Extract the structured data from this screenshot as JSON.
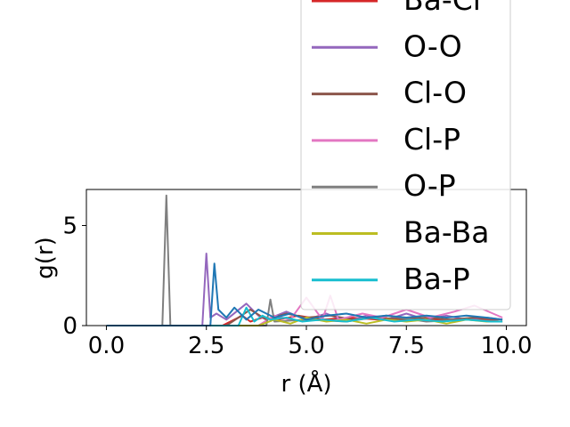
{
  "chart_data": {
    "type": "line",
    "title": "",
    "xlabel": "r (Å)",
    "ylabel": "g(r)",
    "xlim": [
      -0.5,
      10.5
    ],
    "ylim": [
      0,
      6.8
    ],
    "xticks": [
      0.0,
      2.5,
      5.0,
      7.5,
      10.0
    ],
    "xtick_labels": [
      "0.0",
      "2.5",
      "5.0",
      "7.5",
      "10.0"
    ],
    "yticks": [
      0,
      5
    ],
    "ytick_labels": [
      "0",
      "5"
    ],
    "grid": false,
    "legend_position": "top-right",
    "series": [
      {
        "name": "Ba-Cl",
        "color": "#d62728",
        "x": [
          0,
          2.9,
          3.1,
          3.4,
          3.6,
          3.9,
          4.3,
          4.8,
          5.4,
          6.1,
          6.8,
          7.6,
          8.3,
          9.0,
          9.8
        ],
        "y": [
          0,
          0,
          0.2,
          0.5,
          0.2,
          0.4,
          0.3,
          0.5,
          0.3,
          0.4,
          0.3,
          0.4,
          0.3,
          0.3,
          0.3
        ]
      },
      {
        "name": "O-O",
        "color": "#9467bd",
        "x": [
          0,
          2.4,
          2.5,
          2.6,
          2.75,
          3.0,
          3.5,
          3.8,
          4.0,
          4.5,
          5.0,
          5.5,
          6.0,
          6.5,
          7.0,
          7.5,
          8.0,
          8.5,
          9.0,
          9.5,
          9.9
        ],
        "y": [
          0,
          0,
          3.6,
          0.4,
          0.6,
          0.3,
          1.1,
          0.5,
          0.3,
          0.7,
          0.3,
          0.6,
          0.2,
          0.5,
          0.3,
          0.6,
          0.3,
          0.5,
          0.3,
          0.4,
          0.3
        ]
      },
      {
        "name": "Cl-O",
        "color": "#8c564b",
        "x": [
          0,
          3.0,
          3.3,
          3.6,
          4.0,
          4.5,
          5.0,
          5.6,
          6.2,
          6.8,
          7.4,
          8.0,
          8.6,
          9.2,
          9.9
        ],
        "y": [
          0,
          0,
          0.4,
          0.8,
          0.3,
          0.6,
          0.4,
          0.5,
          0.3,
          0.4,
          0.3,
          0.4,
          0.3,
          0.4,
          0.3
        ]
      },
      {
        "name": "Cl-P",
        "color": "#e377c2",
        "x": [
          0,
          3.8,
          4.2,
          4.6,
          5.0,
          5.4,
          5.6,
          5.8,
          6.4,
          6.9,
          7.5,
          8.1,
          8.7,
          9.2,
          9.9
        ],
        "y": [
          0,
          0,
          0.5,
          0.3,
          1.4,
          0.3,
          1.5,
          0.3,
          0.6,
          0.4,
          0.8,
          0.4,
          0.7,
          1.0,
          0.4
        ]
      },
      {
        "name": "O-P",
        "color": "#7f7f7f",
        "x": [
          0,
          1.4,
          1.5,
          1.6,
          2.0,
          4.0,
          4.1,
          4.2,
          5.0,
          6.0,
          7.0,
          8.0,
          9.0,
          9.9
        ],
        "y": [
          0,
          0,
          6.5,
          0,
          0,
          0,
          1.3,
          0.2,
          0.3,
          0.2,
          0.5,
          0.2,
          0.3,
          0.2
        ]
      },
      {
        "name": "Ba-Ba",
        "color": "#bcbd22",
        "x": [
          0,
          3.8,
          4.2,
          4.6,
          5.0,
          5.5,
          6.0,
          6.5,
          7.0,
          7.5,
          8.0,
          8.5,
          9.0,
          9.5,
          9.9
        ],
        "y": [
          0,
          0,
          0.3,
          0.1,
          0.4,
          0.2,
          0.3,
          0.1,
          0.3,
          0.2,
          0.3,
          0.1,
          0.3,
          0.2,
          0.2
        ]
      },
      {
        "name": "Ba-P",
        "color": "#17becf",
        "x": [
          0,
          3.3,
          3.5,
          3.7,
          3.9,
          4.1,
          4.5,
          4.9,
          5.4,
          6.0,
          6.6,
          7.2,
          7.8,
          8.4,
          9.0,
          9.6,
          9.9
        ],
        "y": [
          0,
          0,
          0.9,
          0.2,
          0.5,
          0.3,
          0.4,
          0.2,
          0.3,
          0.2,
          0.4,
          0.2,
          0.3,
          0.2,
          0.3,
          0.2,
          0.2
        ]
      },
      {
        "name": "",
        "color": "#1f77b4",
        "x": [
          0,
          2.6,
          2.7,
          2.8,
          3.0,
          3.2,
          3.5,
          3.8,
          4.2,
          4.6,
          5.0,
          5.5,
          6.0,
          6.5,
          7.0,
          7.5,
          8.0,
          8.5,
          9.0,
          9.5,
          9.9
        ],
        "y": [
          0,
          0,
          3.1,
          0.8,
          0.4,
          0.9,
          0.3,
          0.8,
          0.4,
          0.6,
          0.3,
          0.5,
          0.6,
          0.4,
          0.5,
          0.4,
          0.5,
          0.4,
          0.5,
          0.4,
          0.3
        ]
      }
    ]
  }
}
